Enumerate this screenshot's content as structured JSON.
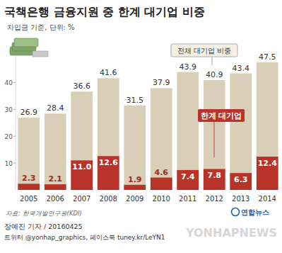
{
  "chart_data": {
    "type": "bar",
    "title": "국책은행 금융지원 중 한계 대기업 비중",
    "subtitle": "차입금 기준, 단위: %",
    "source": "자료: 한국개발연구원(KDI)",
    "credit": "장예진 기자 / 20160425",
    "social": "트위터 @yonhap_graphics, 페이스북 tuney.kr/LeYN1",
    "logo": "연합뉴스",
    "watermark": "YONHAPNEWS",
    "categories": [
      "2005",
      "2006",
      "2007",
      "2008",
      "2009",
      "2010",
      "2011",
      "2012",
      "2013",
      "2014"
    ],
    "series": [
      {
        "name": "전체 대기업 비중",
        "color": "#d9cfb8",
        "values": [
          26.9,
          28.4,
          36.6,
          41.6,
          31.5,
          37.9,
          43.9,
          40.9,
          43.4,
          47.5
        ]
      },
      {
        "name": "한계 대기업",
        "color": "#b8342b",
        "values": [
          2.3,
          2.1,
          11.0,
          12.6,
          1.9,
          4.6,
          7.4,
          7.8,
          6.3,
          12.4
        ],
        "value_labels": [
          "2.3",
          "2.1",
          "11.0",
          "12.6",
          "1.9",
          "4.6",
          "7.4",
          "7.8",
          "6.3",
          "12.4"
        ]
      }
    ],
    "ylim": [
      0,
      50
    ],
    "yticks": [
      10,
      20,
      30,
      40
    ],
    "stacked": false,
    "data_labels": true
  }
}
